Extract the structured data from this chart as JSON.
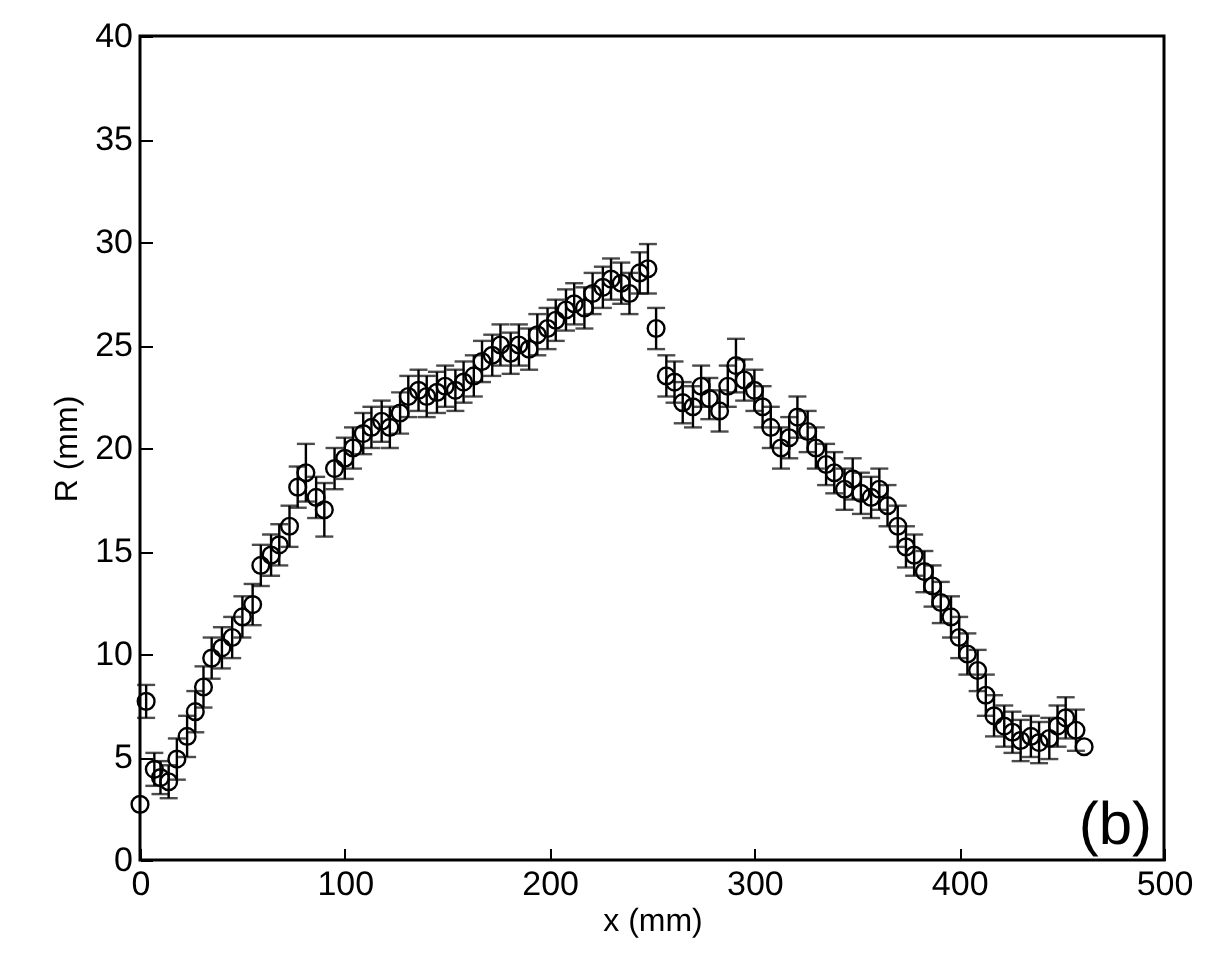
{
  "chart_data": {
    "type": "scatter",
    "xlabel": "x (mm)",
    "ylabel": "R (mm)",
    "marker": "circle",
    "grid": false,
    "annotations": [
      "(b)"
    ],
    "xlim": [
      0,
      500
    ],
    "xticks": [
      0,
      100,
      200,
      300,
      400,
      500
    ],
    "ylim": [
      0,
      40
    ],
    "yticks": [
      0,
      5,
      10,
      15,
      20,
      25,
      30,
      35,
      40
    ],
    "series": [
      {
        "color": "#000000",
        "x": [
          0,
          3,
          7,
          10,
          14,
          18,
          23,
          27,
          31,
          35,
          40,
          45,
          50,
          55,
          59,
          64,
          68,
          73,
          77,
          81,
          86,
          90,
          95,
          100,
          104,
          109,
          113,
          118,
          122,
          127,
          131,
          136,
          140,
          145,
          149,
          154,
          158,
          163,
          167,
          172,
          176,
          181,
          185,
          190,
          194,
          199,
          203,
          208,
          212,
          217,
          221,
          226,
          230,
          235,
          239,
          244,
          248,
          252,
          257,
          261,
          265,
          270,
          274,
          278,
          283,
          287,
          291,
          295,
          300,
          304,
          308,
          313,
          317,
          321,
          326,
          330,
          335,
          339,
          344,
          348,
          352,
          357,
          361,
          365,
          370,
          374,
          378,
          383,
          387,
          391,
          396,
          400,
          404,
          409,
          413,
          417,
          422,
          426,
          430,
          435,
          439,
          444,
          448,
          452,
          457,
          461
        ],
        "values": [
          2.7,
          7.7,
          4.4,
          4.0,
          3.8,
          4.9,
          6.0,
          7.2,
          8.4,
          9.8,
          10.3,
          10.8,
          11.8,
          12.4,
          14.3,
          14.8,
          15.3,
          16.2,
          18.1,
          18.8,
          17.6,
          17.0,
          19.0,
          19.5,
          20.0,
          20.7,
          21.0,
          21.3,
          21.0,
          21.7,
          22.5,
          22.8,
          22.5,
          22.7,
          23.0,
          22.8,
          23.2,
          23.5,
          24.2,
          24.5,
          25.0,
          24.6,
          25.0,
          24.8,
          25.5,
          25.8,
          26.2,
          26.7,
          27.0,
          26.8,
          27.5,
          27.8,
          28.2,
          28.0,
          27.5,
          28.5,
          28.7,
          25.8,
          23.5,
          23.2,
          22.2,
          22.0,
          23.0,
          22.4,
          21.8,
          23.0,
          24.0,
          23.3,
          22.8,
          22.0,
          21.0,
          20.0,
          20.5,
          21.5,
          20.8,
          20.0,
          19.2,
          18.8,
          18.0,
          18.5,
          17.8,
          17.6,
          18.0,
          17.2,
          16.2,
          15.2,
          14.8,
          14.0,
          13.3,
          12.5,
          11.8,
          10.8,
          10.0,
          9.2,
          8.0,
          7.0,
          6.5,
          6.2,
          5.8,
          6.0,
          5.7,
          5.9,
          6.5,
          6.9,
          6.3,
          5.5
        ],
        "errors": [
          null,
          0.8,
          0.8,
          0.8,
          0.8,
          1,
          1,
          1,
          1,
          1,
          1,
          1,
          1,
          1,
          1,
          1,
          1,
          1,
          1,
          1.4,
          1,
          1.3,
          1,
          1,
          1,
          1,
          1,
          1,
          1,
          1,
          1,
          1,
          1,
          1,
          1,
          1,
          1,
          1,
          1,
          1,
          1,
          1,
          1,
          1,
          1,
          1,
          1,
          1,
          1,
          1,
          1,
          1,
          1,
          1,
          1,
          1,
          1.2,
          1,
          1,
          1,
          1,
          1,
          1,
          1,
          1,
          1,
          1.3,
          1,
          1,
          1,
          1,
          1,
          1,
          1,
          1,
          1,
          1,
          1,
          1,
          1,
          1,
          1,
          1,
          1,
          1,
          1,
          1,
          1,
          1,
          1,
          1,
          1,
          1,
          1,
          1,
          1,
          1,
          1,
          1,
          1,
          1,
          1,
          1,
          1,
          1,
          null
        ]
      }
    ]
  }
}
